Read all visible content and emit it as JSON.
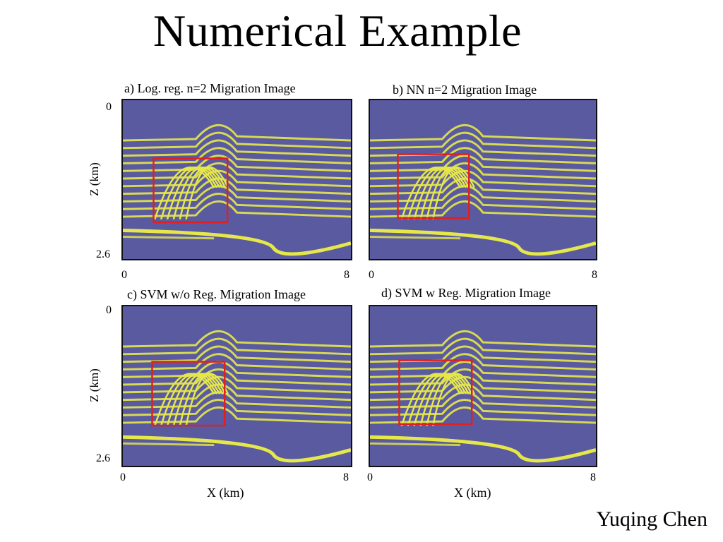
{
  "slide": {
    "title": "Numerical Example",
    "author": "Yuqing Chen"
  },
  "panels": [
    {
      "id": "a",
      "title": "a) Log. reg. n=2  Migration Image",
      "z_top": "0",
      "z_bottom": "2.6",
      "x_left": "0",
      "x_right": "8",
      "z_label": "Z (km)"
    },
    {
      "id": "b",
      "title": "b) NN n=2 Migration Image",
      "z_top": "",
      "z_bottom": "",
      "x_left": "0",
      "x_right": "8",
      "z_label": ""
    },
    {
      "id": "c",
      "title": "c) SVM w/o Reg. Migration Image",
      "z_top": "0",
      "z_bottom": "2.6",
      "x_left": "0",
      "x_right": "8",
      "z_label": "Z (km)"
    },
    {
      "id": "d",
      "title": "d) SVM w Reg. Migration Image",
      "z_top": "",
      "z_bottom": "",
      "x_left": "0",
      "x_right": "8",
      "z_label": ""
    }
  ],
  "x_axis_label": "X (km)",
  "colors": {
    "background_seismic": "#5a5aa0",
    "reflector": "#e6e84a",
    "highlight_box": "#e02020"
  }
}
